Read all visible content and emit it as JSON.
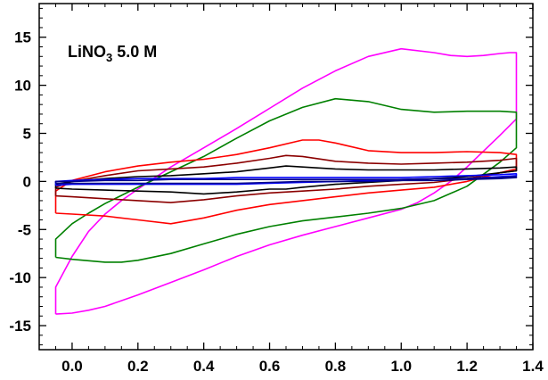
{
  "chart_data": {
    "type": "line",
    "title": "",
    "xlabel": "",
    "ylabel": "",
    "xlim": [
      -0.1,
      1.4
    ],
    "ylim": [
      -17.5,
      18.5
    ],
    "x_ticks": [
      "0.0",
      "0.2",
      "0.4",
      "0.6",
      "0.8",
      "1.0",
      "1.2",
      "1.4"
    ],
    "y_ticks": [
      "-15",
      "-10",
      "-5",
      "0",
      "5",
      "10",
      "15"
    ],
    "grid": false,
    "annotation": {
      "main": "LiNO",
      "sub": "3",
      "tail": " 5.0 M"
    },
    "series": [
      {
        "color": "#ff00ff",
        "x": [
          -0.05,
          0.0,
          0.05,
          0.1,
          0.2,
          0.3,
          0.4,
          0.5,
          0.6,
          0.7,
          0.8,
          0.9,
          1.0,
          1.05,
          1.1,
          1.15,
          1.2,
          1.3,
          1.35,
          1.35,
          1.33,
          1.3,
          1.25,
          1.2,
          1.15,
          1.1,
          1.0,
          0.9,
          0.8,
          0.7,
          0.6,
          0.5,
          0.4,
          0.3,
          0.2,
          0.15,
          0.1,
          0.05,
          0.0,
          -0.05,
          -0.05
        ],
        "y": [
          -13.8,
          -13.7,
          -13.4,
          -13.0,
          -11.8,
          -10.5,
          -9.2,
          -7.8,
          -6.6,
          -5.6,
          -4.7,
          -3.8,
          -2.9,
          -2.2,
          -1.2,
          0.0,
          1.5,
          4.8,
          6.5,
          13.4,
          13.4,
          13.3,
          13.1,
          13.0,
          13.1,
          13.4,
          13.8,
          13.0,
          11.5,
          9.7,
          7.6,
          5.5,
          3.5,
          1.5,
          -0.8,
          -2.0,
          -3.4,
          -5.2,
          -7.8,
          -11.0,
          -13.8
        ]
      },
      {
        "color": "#008000",
        "x": [
          -0.05,
          0.0,
          0.1,
          0.15,
          0.2,
          0.3,
          0.4,
          0.5,
          0.6,
          0.7,
          0.8,
          0.9,
          1.0,
          1.1,
          1.2,
          1.3,
          1.35,
          1.35,
          1.3,
          1.2,
          1.1,
          1.0,
          0.9,
          0.8,
          0.7,
          0.6,
          0.5,
          0.4,
          0.3,
          0.2,
          0.1,
          0.05,
          0.0,
          -0.05,
          -0.05
        ],
        "y": [
          -7.9,
          -8.1,
          -8.4,
          -8.4,
          -8.2,
          -7.5,
          -6.5,
          -5.5,
          -4.7,
          -4.1,
          -3.7,
          -3.3,
          -2.8,
          -2.0,
          -0.5,
          2.0,
          3.5,
          7.2,
          7.3,
          7.3,
          7.2,
          7.5,
          8.3,
          8.6,
          7.7,
          6.3,
          4.5,
          2.6,
          1.0,
          -0.6,
          -2.3,
          -3.3,
          -4.4,
          -6.0,
          -7.9
        ]
      },
      {
        "color": "#ff0000",
        "x": [
          -0.05,
          0.0,
          0.1,
          0.2,
          0.3,
          0.4,
          0.5,
          0.6,
          0.7,
          0.8,
          0.9,
          1.0,
          1.1,
          1.2,
          1.3,
          1.35,
          1.35,
          1.3,
          1.2,
          1.1,
          1.0,
          0.9,
          0.8,
          0.75,
          0.7,
          0.6,
          0.5,
          0.4,
          0.3,
          0.2,
          0.1,
          0.0,
          -0.05,
          -0.05
        ],
        "y": [
          -3.3,
          -3.4,
          -3.6,
          -4.0,
          -4.4,
          -3.8,
          -3.0,
          -2.4,
          -2.0,
          -1.6,
          -1.2,
          -0.9,
          -0.6,
          0.0,
          0.9,
          1.3,
          2.8,
          3.0,
          3.1,
          3.0,
          3.0,
          3.2,
          4.0,
          4.3,
          4.3,
          3.5,
          2.8,
          2.3,
          2.0,
          1.6,
          1.0,
          0.1,
          -1.0,
          -3.3
        ]
      },
      {
        "color": "#8b0000",
        "x": [
          -0.05,
          0.0,
          0.1,
          0.2,
          0.3,
          0.4,
          0.5,
          0.6,
          0.7,
          0.8,
          0.9,
          1.0,
          1.1,
          1.2,
          1.3,
          1.35,
          1.35,
          1.3,
          1.2,
          1.1,
          1.0,
          0.9,
          0.8,
          0.7,
          0.65,
          0.6,
          0.5,
          0.4,
          0.3,
          0.2,
          0.1,
          0.0,
          -0.05,
          -0.05
        ],
        "y": [
          -1.5,
          -1.6,
          -1.8,
          -2.0,
          -2.2,
          -1.9,
          -1.5,
          -1.2,
          -1.0,
          -0.8,
          -0.5,
          -0.3,
          -0.1,
          0.3,
          0.9,
          1.1,
          2.4,
          2.2,
          2.0,
          1.9,
          1.8,
          1.9,
          2.1,
          2.6,
          2.7,
          2.4,
          1.9,
          1.5,
          1.3,
          1.1,
          0.6,
          0.0,
          -0.6,
          -1.5
        ]
      },
      {
        "color": "#000000",
        "x": [
          -0.05,
          0.0,
          0.1,
          0.2,
          0.3,
          0.4,
          0.5,
          0.6,
          0.65,
          0.7,
          0.8,
          0.9,
          1.0,
          1.1,
          1.2,
          1.3,
          1.35,
          1.35,
          1.3,
          1.2,
          1.1,
          1.0,
          0.9,
          0.8,
          0.7,
          0.65,
          0.6,
          0.5,
          0.4,
          0.3,
          0.2,
          0.1,
          0.0,
          -0.05,
          -0.05
        ],
        "y": [
          -0.7,
          -0.8,
          -0.9,
          -1.0,
          -1.1,
          -1.3,
          -1.1,
          -0.8,
          -0.8,
          -0.6,
          -0.3,
          -0.1,
          0.1,
          0.3,
          0.5,
          0.9,
          1.1,
          1.5,
          1.4,
          1.3,
          1.2,
          1.2,
          1.2,
          1.3,
          1.5,
          1.6,
          1.4,
          1.0,
          0.8,
          0.6,
          0.5,
          0.3,
          0.0,
          -0.3,
          -0.7
        ]
      },
      {
        "color": "#0000ff",
        "x": [
          -0.05,
          0.0,
          0.1,
          0.2,
          0.3,
          0.4,
          0.5,
          0.6,
          0.7,
          0.8,
          0.9,
          1.0,
          1.1,
          1.2,
          1.3,
          1.35,
          1.35,
          1.3,
          1.2,
          1.1,
          1.0,
          0.9,
          0.8,
          0.7,
          0.6,
          0.5,
          0.4,
          0.3,
          0.2,
          0.1,
          0.0,
          -0.05,
          -0.05
        ],
        "y": [
          -0.4,
          -0.3,
          -0.3,
          -0.3,
          -0.3,
          -0.3,
          -0.3,
          -0.2,
          -0.1,
          0.0,
          0.1,
          0.2,
          0.3,
          0.3,
          0.5,
          0.6,
          0.8,
          0.7,
          0.6,
          0.5,
          0.4,
          0.4,
          0.4,
          0.4,
          0.4,
          0.4,
          0.3,
          0.3,
          0.3,
          0.2,
          0.1,
          0.0,
          -0.4
        ]
      },
      {
        "color": "#00008b",
        "x": [
          -0.05,
          0.0,
          0.1,
          0.2,
          0.3,
          0.4,
          0.5,
          0.6,
          0.7,
          0.8,
          0.9,
          1.0,
          1.1,
          1.2,
          1.3,
          1.35,
          1.35,
          1.3,
          1.2,
          1.1,
          1.0,
          0.9,
          0.8,
          0.7,
          0.6,
          0.5,
          0.4,
          0.3,
          0.2,
          0.1,
          0.0,
          -0.05,
          -0.05
        ],
        "y": [
          -0.2,
          -0.2,
          -0.2,
          -0.2,
          -0.2,
          -0.2,
          -0.2,
          -0.1,
          0.0,
          0.0,
          0.0,
          0.1,
          0.1,
          0.2,
          0.3,
          0.4,
          0.5,
          0.4,
          0.3,
          0.3,
          0.2,
          0.2,
          0.2,
          0.2,
          0.2,
          0.2,
          0.2,
          0.2,
          0.1,
          0.1,
          0.0,
          0.0,
          -0.2
        ]
      }
    ]
  }
}
